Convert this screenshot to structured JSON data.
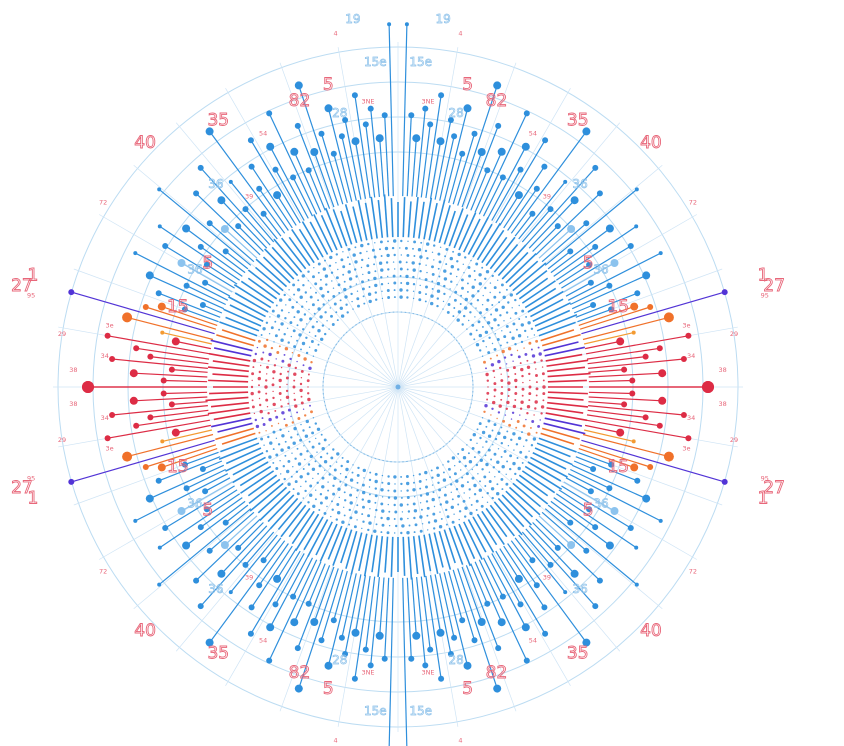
{
  "chart_data": {
    "type": "radial-lollipop",
    "symmetry": "four-fold mirrored (left-right and top-bottom)",
    "colors": {
      "base_blue": "#2e8fdc",
      "light_blue": "#8cc3ee",
      "red": "#dd2c45",
      "orange": "#f0712a",
      "amber": "#f39a32",
      "purple": "#5234d6",
      "label_red": "#e8677a",
      "label_blue": "#8cc1ea",
      "grid": "#bcdcf2"
    },
    "quadrant_lollipops": [
      {
        "angle": 0.0,
        "length": 0.82,
        "dot": 6,
        "color": "#dd2c45"
      },
      {
        "angle": 1.6,
        "length": 0.62,
        "dot": 3,
        "color": "#dd2c45"
      },
      {
        "angle": 3.0,
        "length": 0.7,
        "dot": 4,
        "color": "#dd2c45"
      },
      {
        "angle": 4.4,
        "length": 0.6,
        "dot": 3,
        "color": "#dd2c45"
      },
      {
        "angle": 5.6,
        "length": 0.76,
        "dot": 3,
        "color": "#dd2c45"
      },
      {
        "angle": 7.0,
        "length": 0.66,
        "dot": 3,
        "color": "#dd2c45"
      },
      {
        "angle": 8.4,
        "length": 0.7,
        "dot": 3,
        "color": "#dd2c45"
      },
      {
        "angle": 10.0,
        "length": 0.78,
        "dot": 3,
        "color": "#dd2c45"
      },
      {
        "angle": 11.6,
        "length": 0.6,
        "dot": 4,
        "color": "#dd2c45"
      },
      {
        "angle": 13.0,
        "length": 0.64,
        "dot": 2,
        "color": "#f39a32"
      },
      {
        "angle": 14.4,
        "length": 0.74,
        "dot": 5,
        "color": "#f0712a"
      },
      {
        "angle": 16.2,
        "length": 0.9,
        "dot": 3,
        "color": "#5234d6"
      },
      {
        "angle": 17.6,
        "length": 0.7,
        "dot": 3,
        "color": "#f0712a"
      },
      {
        "angle": 18.8,
        "length": 0.66,
        "dot": 4,
        "color": "#f0712a"
      },
      {
        "angle": 20.0,
        "length": 0.6,
        "dot": 3,
        "color": "#2e8fdc"
      },
      {
        "angle": 21.4,
        "length": 0.68,
        "dot": 3,
        "color": "#2e8fdc"
      },
      {
        "angle": 22.8,
        "length": 0.56,
        "dot": 3,
        "color": "#2e8fdc"
      },
      {
        "angle": 24.2,
        "length": 0.72,
        "dot": 4,
        "color": "#2e8fdc"
      },
      {
        "angle": 25.6,
        "length": 0.62,
        "dot": 3,
        "color": "#2e8fdc"
      },
      {
        "angle": 27.0,
        "length": 0.78,
        "dot": 2,
        "color": "#2e8fdc"
      },
      {
        "angle": 28.4,
        "length": 0.58,
        "dot": 3,
        "color": "#2e8fdc"
      },
      {
        "angle": 29.8,
        "length": 0.66,
        "dot": 4,
        "color": "#8cc3ee"
      },
      {
        "angle": 31.2,
        "length": 0.72,
        "dot": 3,
        "color": "#2e8fdc"
      },
      {
        "angle": 32.6,
        "length": 0.6,
        "dot": 3,
        "color": "#2e8fdc"
      },
      {
        "angle": 34.0,
        "length": 0.76,
        "dot": 2,
        "color": "#2e8fdc"
      },
      {
        "angle": 35.4,
        "length": 0.64,
        "dot": 3,
        "color": "#2e8fdc"
      },
      {
        "angle": 36.8,
        "length": 0.7,
        "dot": 4,
        "color": "#2e8fdc"
      },
      {
        "angle": 38.2,
        "length": 0.58,
        "dot": 3,
        "color": "#2e8fdc"
      },
      {
        "angle": 39.6,
        "length": 0.82,
        "dot": 2,
        "color": "#2e8fdc"
      },
      {
        "angle": 41.0,
        "length": 0.66,
        "dot": 3,
        "color": "#2e8fdc"
      },
      {
        "angle": 42.4,
        "length": 0.62,
        "dot": 4,
        "color": "#8cc3ee"
      },
      {
        "angle": 43.8,
        "length": 0.74,
        "dot": 3,
        "color": "#2e8fdc"
      },
      {
        "angle": 45.2,
        "length": 0.6,
        "dot": 3,
        "color": "#2e8fdc"
      },
      {
        "angle": 46.6,
        "length": 0.68,
        "dot": 4,
        "color": "#2e8fdc"
      },
      {
        "angle": 48.0,
        "length": 0.78,
        "dot": 3,
        "color": "#2e8fdc"
      },
      {
        "angle": 49.4,
        "length": 0.62,
        "dot": 3,
        "color": "#2e8fdc"
      },
      {
        "angle": 50.8,
        "length": 0.7,
        "dot": 2,
        "color": "#2e8fdc"
      },
      {
        "angle": 52.2,
        "length": 0.58,
        "dot": 3,
        "color": "#2e8fdc"
      },
      {
        "angle": 53.6,
        "length": 0.84,
        "dot": 4,
        "color": "#2e8fdc"
      },
      {
        "angle": 55.0,
        "length": 0.64,
        "dot": 3,
        "color": "#2e8fdc"
      },
      {
        "angle": 56.4,
        "length": 0.7,
        "dot": 3,
        "color": "#2e8fdc"
      },
      {
        "angle": 57.8,
        "length": 0.6,
        "dot": 4,
        "color": "#2e8fdc"
      },
      {
        "angle": 59.2,
        "length": 0.76,
        "dot": 3,
        "color": "#2e8fdc"
      },
      {
        "angle": 60.6,
        "length": 0.66,
        "dot": 3,
        "color": "#2e8fdc"
      },
      {
        "angle": 62.0,
        "length": 0.72,
        "dot": 4,
        "color": "#2e8fdc"
      },
      {
        "angle": 63.4,
        "length": 0.62,
        "dot": 3,
        "color": "#2e8fdc"
      },
      {
        "angle": 64.8,
        "length": 0.8,
        "dot": 3,
        "color": "#2e8fdc"
      },
      {
        "angle": 66.2,
        "length": 0.68,
        "dot": 4,
        "color": "#2e8fdc"
      },
      {
        "angle": 67.6,
        "length": 0.62,
        "dot": 3,
        "color": "#2e8fdc"
      },
      {
        "angle": 69.0,
        "length": 0.74,
        "dot": 3,
        "color": "#2e8fdc"
      },
      {
        "angle": 70.4,
        "length": 0.66,
        "dot": 4,
        "color": "#2e8fdc"
      },
      {
        "angle": 71.8,
        "length": 0.84,
        "dot": 4,
        "color": "#2e8fdc"
      },
      {
        "angle": 73.2,
        "length": 0.7,
        "dot": 3,
        "color": "#2e8fdc"
      },
      {
        "angle": 74.6,
        "length": 0.64,
        "dot": 3,
        "color": "#2e8fdc"
      },
      {
        "angle": 76.0,
        "length": 0.76,
        "dot": 4,
        "color": "#2e8fdc"
      },
      {
        "angle": 77.4,
        "length": 0.68,
        "dot": 3,
        "color": "#2e8fdc"
      },
      {
        "angle": 78.8,
        "length": 0.72,
        "dot": 3,
        "color": "#2e8fdc"
      },
      {
        "angle": 80.2,
        "length": 0.66,
        "dot": 4,
        "color": "#2e8fdc"
      },
      {
        "angle": 81.6,
        "length": 0.78,
        "dot": 3,
        "color": "#2e8fdc"
      },
      {
        "angle": 83.0,
        "length": 0.7,
        "dot": 3,
        "color": "#2e8fdc"
      },
      {
        "angle": 84.4,
        "length": 0.74,
        "dot": 3,
        "color": "#2e8fdc"
      },
      {
        "angle": 85.8,
        "length": 0.66,
        "dot": 4,
        "color": "#2e8fdc"
      },
      {
        "angle": 87.2,
        "length": 0.72,
        "dot": 3,
        "color": "#2e8fdc"
      },
      {
        "angle": 88.6,
        "length": 0.96,
        "dot": 2,
        "color": "#2e8fdc"
      }
    ],
    "big_labels": [
      {
        "text": "82",
        "angle": 71,
        "r": 0.8
      },
      {
        "text": "35",
        "angle": 56,
        "r": 0.85
      },
      {
        "text": "40",
        "angle": 44,
        "r": 0.93
      },
      {
        "text": "5",
        "angle": 33,
        "r": 0.6
      },
      {
        "text": "15",
        "angle": 20,
        "r": 0.62
      },
      {
        "text": "27",
        "angle": 15,
        "r": 1.03
      },
      {
        "text": "1",
        "angle": 17,
        "r": 1.01
      },
      {
        "text": "5",
        "angle": 77,
        "r": 0.82
      }
    ],
    "blue_labels": [
      {
        "text": "28",
        "angle": 78,
        "r": 0.74
      },
      {
        "text": "19",
        "angle": 83,
        "r": 0.98
      },
      {
        "text": "15e",
        "angle": 86,
        "r": 0.86
      },
      {
        "text": "36",
        "angle": 30,
        "r": 0.62
      },
      {
        "text": "36",
        "angle": 48,
        "r": 0.72
      }
    ],
    "tiny_labels": [
      {
        "text": "72",
        "angle": 32,
        "r": 0.92
      },
      {
        "text": "29",
        "angle": 9,
        "r": 0.9
      },
      {
        "text": "34",
        "angle": 6,
        "r": 0.78
      },
      {
        "text": "38",
        "angle": 3,
        "r": 0.86
      },
      {
        "text": "3e",
        "angle": 12,
        "r": 0.78
      },
      {
        "text": "39",
        "angle": 52,
        "r": 0.64
      },
      {
        "text": "54",
        "angle": 62,
        "r": 0.76
      },
      {
        "text": "3NE",
        "angle": 84,
        "r": 0.76
      },
      {
        "text": "95",
        "angle": 14,
        "r": 1.0
      },
      {
        "text": "4",
        "angle": 80,
        "r": 0.95
      }
    ]
  }
}
